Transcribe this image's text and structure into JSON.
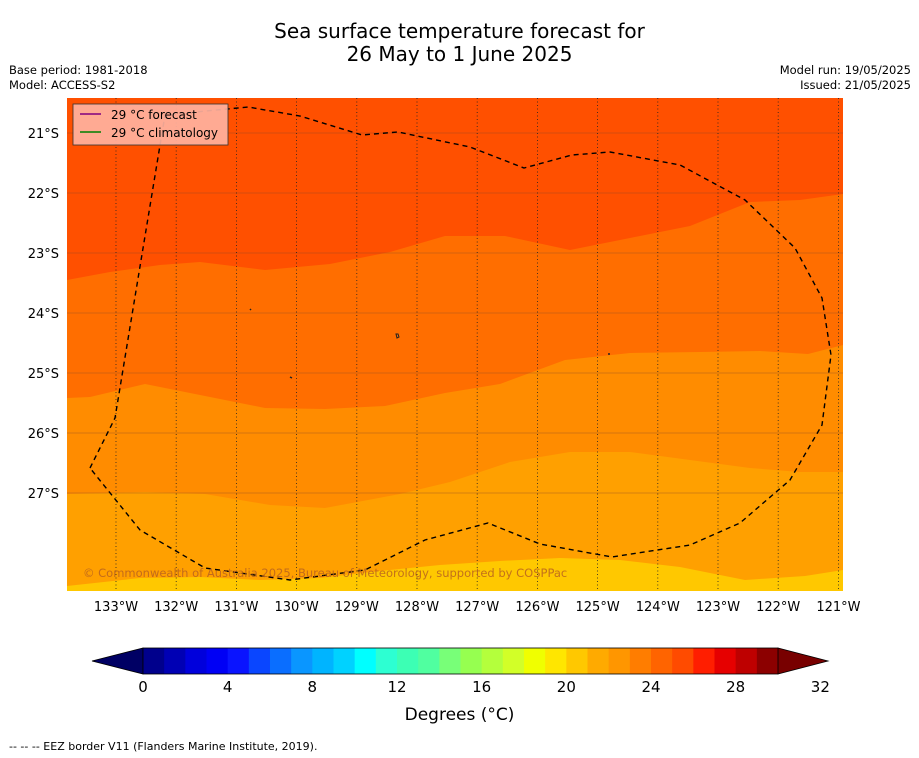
{
  "title_line1": "Sea surface temperature forecast for",
  "title_line2": "26 May to 1 June 2025",
  "meta_left": {
    "base_period": "Base period: 1981-2018",
    "model": "Model: ACCESS-S2"
  },
  "meta_right": {
    "model_run": "Model run: 19/05/2025",
    "issued": "Issued: 21/05/2025"
  },
  "legend": {
    "forecast_label": "29 °C  forecast",
    "climatology_label": "29 °C  climatology",
    "forecast_color": "#800080",
    "climatology_color": "#008000"
  },
  "copyright": "© Commonwealth of Australia 2025, Bureau of Meteorology, supported by COSPPac",
  "axes": {
    "lat_labels": [
      "21°S",
      "22°S",
      "23°S",
      "24°S",
      "25°S",
      "26°S",
      "27°S"
    ],
    "lon_labels": [
      "133°W",
      "132°W",
      "131°W",
      "130°W",
      "129°W",
      "128°W",
      "127°W",
      "126°W",
      "125°W",
      "124°W",
      "123°W",
      "122°W",
      "121°W"
    ]
  },
  "colorbar": {
    "title": "Degrees (°C)",
    "tick_labels": [
      "0",
      "4",
      "8",
      "12",
      "16",
      "20",
      "24",
      "28",
      "32"
    ],
    "colors": [
      "#00008c",
      "#0000b4",
      "#0000dc",
      "#0000f5",
      "#0a14ff",
      "#0a46ff",
      "#0a6eff",
      "#0a96ff",
      "#00b4ff",
      "#00d2ff",
      "#00ffff",
      "#2dffd2",
      "#3cffb4",
      "#50ffa0",
      "#78ff78",
      "#96ff50",
      "#b4ff3c",
      "#d2ff28",
      "#f0ff00",
      "#ffe600",
      "#ffc800",
      "#ffaa00",
      "#ff9600",
      "#ff7d00",
      "#ff6400",
      "#ff4b00",
      "#ff1e00",
      "#e60000",
      "#be0000",
      "#8c0000"
    ],
    "under_color": "#000064",
    "over_color": "#780000"
  },
  "sst_colors": {
    "band_above_29": "#ff5000",
    "band_28_29": "#ff6e00",
    "band_27_28": "#ff8c00",
    "band_26_27": "#ffa000",
    "band_25_26": "#ffc800"
  },
  "footnote": "--  --  -- EEZ border V11 (Flanders Marine Institute, 2019)."
}
